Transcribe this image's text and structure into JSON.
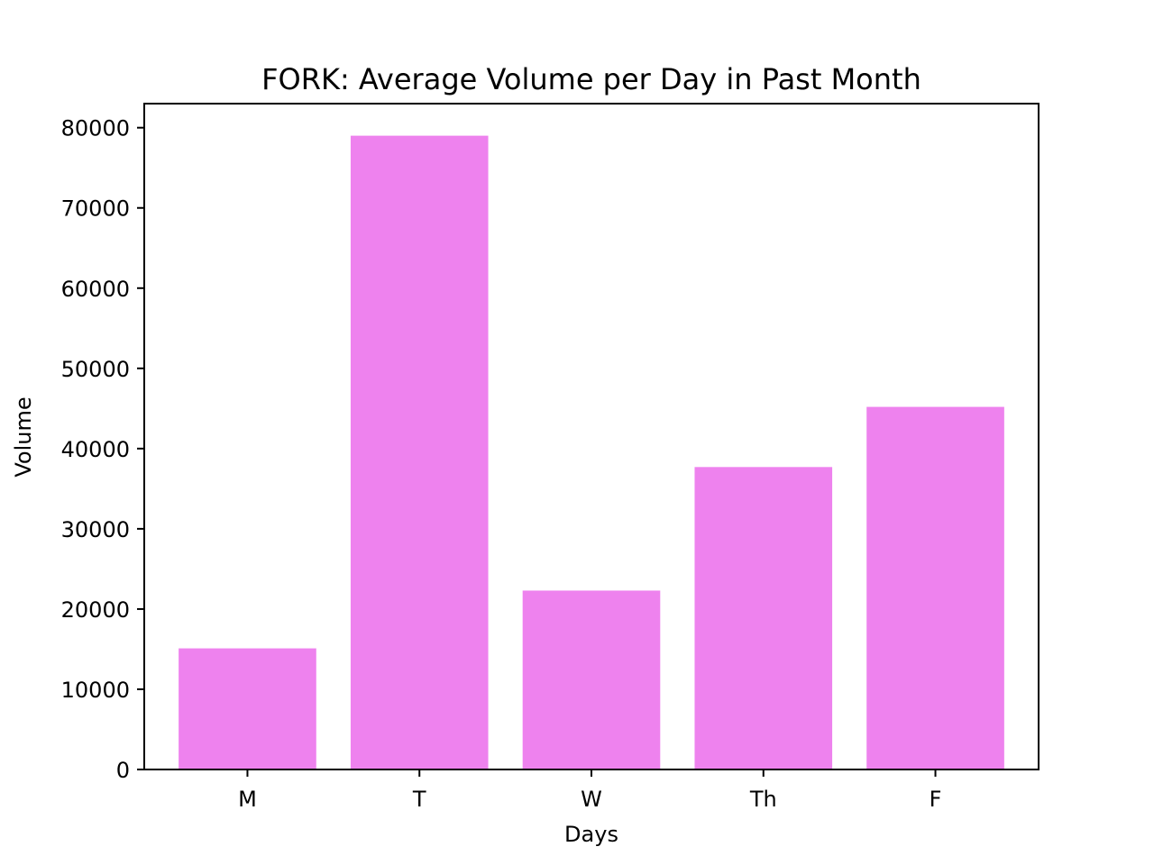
{
  "chart_data": {
    "type": "bar",
    "title": "FORK: Average Volume per Day in Past Month",
    "xlabel": "Days",
    "ylabel": "Volume",
    "categories": [
      "M",
      "T",
      "W",
      "Th",
      "F"
    ],
    "values": [
      15100,
      79000,
      22300,
      37700,
      45200
    ],
    "ylim": [
      0,
      83000
    ],
    "yticks": [
      0,
      10000,
      20000,
      30000,
      40000,
      50000,
      60000,
      70000,
      80000
    ],
    "bar_color": "#ee82ee",
    "grid": false,
    "legend": "none"
  }
}
